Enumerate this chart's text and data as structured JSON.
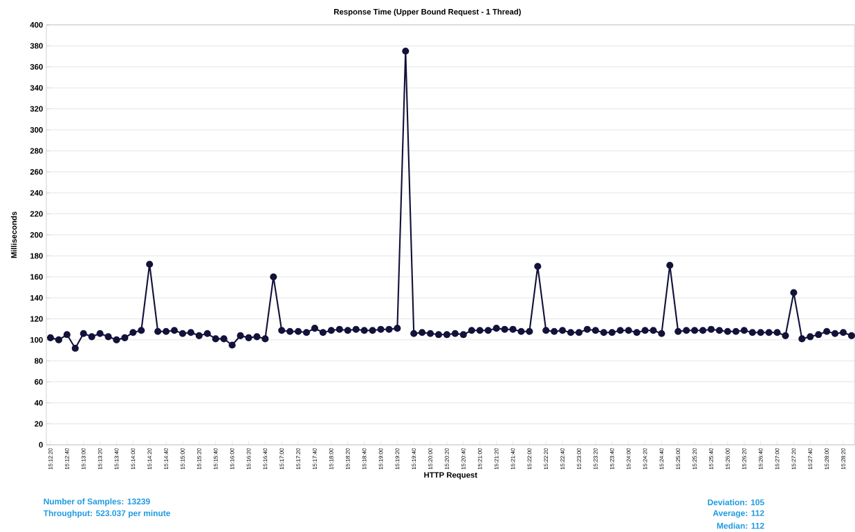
{
  "chart_data": {
    "type": "line",
    "title": "Response Time (Upper Bound Request - 1 Thread)",
    "xlabel": "HTTP Request",
    "ylabel": "Milliseconds",
    "categories": [
      "15:12:20",
      null,
      "15:12:40",
      null,
      "15:13:00",
      null,
      "15:13:20",
      null,
      "15:13:40",
      null,
      "15:14:00",
      null,
      "15:14:20",
      null,
      "15:14:40",
      null,
      "15:15:00",
      null,
      "15:15:20",
      null,
      "15:15:40",
      null,
      "15:16:00",
      null,
      "15:16:20",
      null,
      "15:16:40",
      null,
      "15:17:00",
      null,
      "15:17:20",
      null,
      "15:17:40",
      null,
      "15:18:00",
      null,
      "15:18:20",
      null,
      "15:18:40",
      null,
      "15:19:00",
      null,
      "15:19:20",
      null,
      "15:19:40",
      null,
      "15:20:00",
      null,
      "15:20:20",
      null,
      "15:20:40",
      null,
      "15:21:00",
      null,
      "15:21:20",
      null,
      "15:21:40",
      null,
      "15:22:00",
      null,
      "15:22:20",
      null,
      "15:22:40",
      null,
      "15:23:00",
      null,
      "15:23:20",
      null,
      "15:23:40",
      null,
      "15:24:00",
      null,
      "15:24:20",
      null,
      "15:24:40",
      null,
      "15:25:00",
      null,
      "15:25:20",
      null,
      "15:25:40",
      null,
      "15:26:00",
      null,
      "15:26:20",
      null,
      "15:26:40",
      null,
      "15:27:00",
      null,
      "15:27:20",
      null,
      "15:27:40",
      null,
      "15:28:00",
      null,
      "15:28:20",
      null
    ],
    "series": [
      {
        "color": "#12123a",
        "values": [
          102,
          100,
          105,
          92,
          106,
          103,
          106,
          103,
          100,
          102,
          107,
          109,
          172,
          108,
          108,
          109,
          106,
          107,
          104,
          106,
          101,
          101,
          95,
          104,
          102,
          103,
          101,
          160,
          109,
          108,
          108,
          107,
          111,
          107,
          109,
          110,
          109,
          110,
          109,
          109,
          110,
          110,
          111,
          375,
          106,
          107,
          106,
          105,
          105,
          106,
          105,
          109,
          109,
          109,
          111,
          110,
          110,
          108,
          108,
          170,
          109,
          108,
          109,
          107,
          107,
          110,
          109,
          107,
          107,
          109,
          109,
          107,
          109,
          109,
          106,
          171,
          108,
          109,
          109,
          109,
          110,
          109,
          108,
          108,
          109,
          107,
          107,
          107,
          107,
          104,
          145,
          101,
          103,
          105,
          108,
          106,
          107,
          104
        ]
      }
    ],
    "ylim": [
      0,
      400
    ],
    "yticks": [
      0,
      20,
      40,
      60,
      80,
      100,
      120,
      140,
      160,
      180,
      200,
      220,
      240,
      260,
      280,
      300,
      320,
      340,
      360,
      380,
      400
    ],
    "grid": "y",
    "marker": "circle",
    "line_style": "solid",
    "annotations": [
      "Number of Samples: 13239",
      "Throughput: 523.037 per minute",
      "Deviation: 105",
      "Average: 112",
      "Median:  112"
    ]
  }
}
